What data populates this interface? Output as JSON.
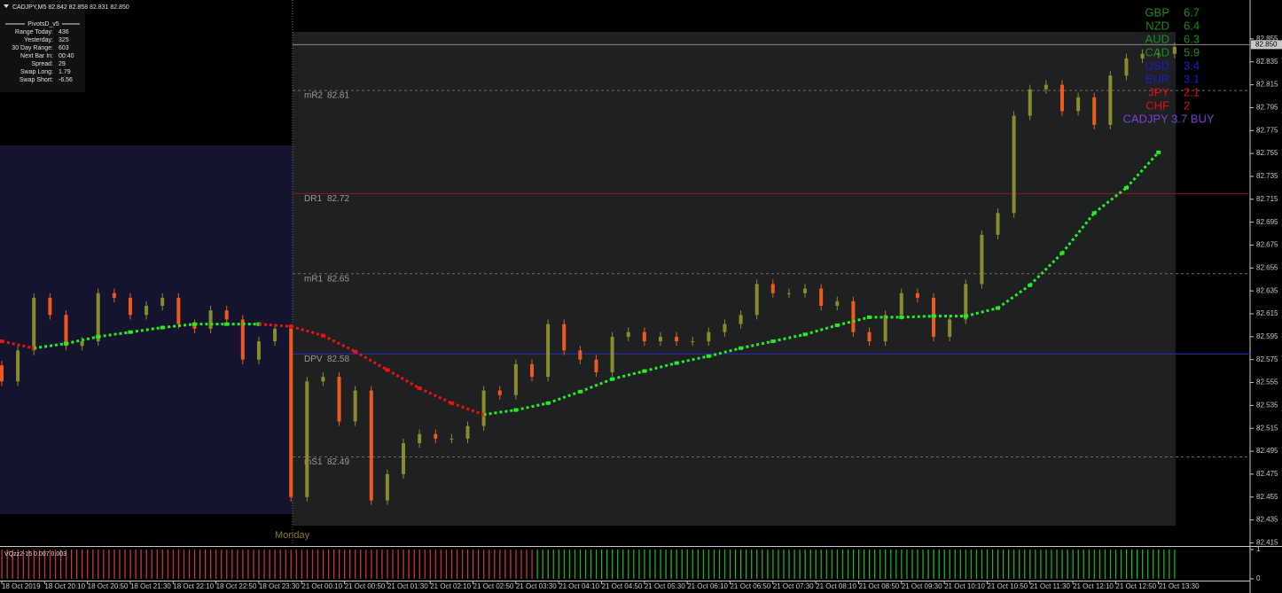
{
  "chart_data": {
    "type": "candlestick",
    "header": "CADJPY,M5  82.842 82.858 82.831 82.850",
    "up_color": "#8a8c2a",
    "down_color": "#ee5a1e",
    "xlim": [
      -0.33,
      233.1
    ],
    "ylim": [
      82.413,
      82.889
    ],
    "yticks": [
      82.415,
      82.435,
      82.455,
      82.475,
      82.495,
      82.515,
      82.535,
      82.555,
      82.575,
      82.595,
      82.615,
      82.635,
      82.655,
      82.675,
      82.695,
      82.715,
      82.735,
      82.755,
      82.775,
      82.795,
      82.815,
      82.835,
      82.855
    ],
    "xticks": [
      {
        "value": 0,
        "label": "18 Oct 2019"
      },
      {
        "value": 8,
        "label": "18 Oct 20:10"
      },
      {
        "value": 16,
        "label": "18 Oct 20:50"
      },
      {
        "value": 24,
        "label": "18 Oct 21:30"
      },
      {
        "value": 32,
        "label": "18 Oct 22:10"
      },
      {
        "value": 40,
        "label": "18 Oct 22:50"
      },
      {
        "value": 48,
        "label": "18 Oct 23:30"
      },
      {
        "value": 56,
        "label": "21 Oct 00:10"
      },
      {
        "value": 64,
        "label": "21 Oct 00:50"
      },
      {
        "value": 72,
        "label": "21 Oct 01:30"
      },
      {
        "value": 80,
        "label": "21 Oct 02:10"
      },
      {
        "value": 88,
        "label": "21 Oct 02:50"
      },
      {
        "value": 96,
        "label": "21 Oct 03:30"
      },
      {
        "value": 104,
        "label": "21 Oct 04:10"
      },
      {
        "value": 112,
        "label": "21 Oct 04:50"
      },
      {
        "value": 120,
        "label": "21 Oct 05:30"
      },
      {
        "value": 128,
        "label": "21 Oct 06:10"
      },
      {
        "value": 136,
        "label": "21 Oct 06:50"
      },
      {
        "value": 144,
        "label": "21 Oct 07:30"
      },
      {
        "value": 152,
        "label": "21 Oct 08:10"
      },
      {
        "value": 160,
        "label": "21 Oct 08:50"
      },
      {
        "value": 168,
        "label": "21 Oct 09:30"
      },
      {
        "value": 176,
        "label": "21 Oct 10:10"
      },
      {
        "value": 184,
        "label": "21 Oct 10:50"
      },
      {
        "value": 192,
        "label": "21 Oct 11:30"
      },
      {
        "value": 200,
        "label": "21 Oct 12:10"
      },
      {
        "value": 208,
        "label": "21 Oct 12:50"
      },
      {
        "value": 216,
        "label": "21 Oct 13:30"
      }
    ],
    "x": [
      0,
      3,
      6,
      9,
      12,
      15,
      18,
      21,
      24,
      27,
      30,
      33,
      36,
      39,
      42,
      45,
      48,
      51,
      54,
      57,
      60,
      63,
      66,
      69,
      72,
      75,
      78,
      81,
      84,
      87,
      90,
      93,
      96,
      99,
      102,
      105,
      108,
      111,
      114,
      117,
      120,
      123,
      126,
      129,
      132,
      135,
      138,
      141,
      144,
      147,
      150,
      153,
      156,
      159,
      162,
      165,
      168,
      171,
      174,
      177,
      180,
      183,
      186,
      189,
      192,
      195,
      198,
      201,
      204,
      207,
      210,
      213,
      216,
      219
    ],
    "open": [
      82.57,
      82.556,
      82.583,
      82.629,
      82.614,
      82.587,
      82.591,
      82.633,
      82.629,
      82.614,
      82.622,
      82.629,
      82.606,
      82.602,
      82.618,
      82.61,
      82.575,
      82.591,
      82.602,
      82.455,
      82.556,
      82.56,
      82.521,
      82.548,
      82.452,
      82.475,
      82.502,
      82.51,
      82.506,
      82.506,
      82.517,
      82.548,
      82.544,
      82.571,
      82.56,
      82.606,
      82.583,
      82.575,
      82.564,
      82.595,
      82.599,
      82.591,
      82.595,
      82.591,
      82.591,
      82.599,
      82.606,
      82.614,
      82.641,
      82.633,
      82.633,
      82.637,
      82.622,
      82.626,
      82.599,
      82.591,
      82.614,
      82.633,
      82.629,
      82.595,
      82.61,
      82.641,
      82.684,
      82.703,
      82.788,
      82.811,
      82.815,
      82.792,
      82.804,
      82.78,
      82.823,
      82.838,
      82.842,
      82.842
    ],
    "high": [
      82.574,
      82.587,
      82.633,
      82.633,
      82.618,
      82.595,
      82.637,
      82.637,
      82.633,
      82.626,
      82.633,
      82.633,
      82.61,
      82.622,
      82.622,
      82.614,
      82.595,
      82.606,
      82.606,
      82.56,
      82.564,
      82.564,
      82.552,
      82.552,
      82.479,
      82.506,
      82.514,
      82.514,
      82.51,
      82.521,
      82.552,
      82.552,
      82.575,
      82.575,
      82.61,
      82.61,
      82.587,
      82.579,
      82.599,
      82.603,
      82.603,
      82.599,
      82.599,
      82.595,
      82.603,
      82.61,
      82.618,
      82.645,
      82.645,
      82.637,
      82.641,
      82.641,
      82.63,
      82.63,
      82.603,
      82.618,
      82.637,
      82.637,
      82.633,
      82.614,
      82.645,
      82.688,
      82.707,
      82.792,
      82.815,
      82.819,
      82.819,
      82.808,
      82.808,
      82.827,
      82.842,
      82.846,
      82.846,
      82.852
    ],
    "low": [
      82.552,
      82.552,
      82.579,
      82.61,
      82.583,
      82.583,
      82.587,
      82.625,
      82.61,
      82.61,
      82.618,
      82.602,
      82.598,
      82.598,
      82.606,
      82.571,
      82.571,
      82.587,
      82.451,
      82.451,
      82.552,
      82.517,
      82.517,
      82.448,
      82.448,
      82.471,
      82.498,
      82.502,
      82.502,
      82.502,
      82.513,
      82.54,
      82.54,
      82.556,
      82.556,
      82.579,
      82.571,
      82.56,
      82.56,
      82.591,
      82.587,
      82.587,
      82.587,
      82.587,
      82.587,
      82.595,
      82.602,
      82.61,
      82.629,
      82.629,
      82.629,
      82.618,
      82.618,
      82.595,
      82.587,
      82.587,
      82.61,
      82.625,
      82.591,
      82.591,
      82.606,
      82.637,
      82.68,
      82.699,
      82.784,
      82.807,
      82.788,
      82.788,
      82.776,
      82.776,
      82.819,
      82.834,
      82.838,
      82.838
    ],
    "close": [
      82.556,
      82.583,
      82.629,
      82.614,
      82.587,
      82.591,
      82.633,
      82.629,
      82.614,
      82.622,
      82.629,
      82.606,
      82.602,
      82.618,
      82.61,
      82.575,
      82.591,
      82.602,
      82.455,
      82.556,
      82.56,
      82.521,
      82.548,
      82.452,
      82.475,
      82.502,
      82.51,
      82.506,
      82.506,
      82.517,
      82.548,
      82.544,
      82.571,
      82.56,
      82.606,
      82.583,
      82.575,
      82.564,
      82.595,
      82.599,
      82.591,
      82.595,
      82.591,
      82.591,
      82.599,
      82.606,
      82.614,
      82.641,
      82.633,
      82.633,
      82.637,
      82.622,
      82.626,
      82.599,
      82.591,
      82.614,
      82.633,
      82.629,
      82.595,
      82.61,
      82.641,
      82.684,
      82.703,
      82.788,
      82.811,
      82.815,
      82.792,
      82.804,
      82.78,
      82.823,
      82.838,
      82.842,
      82.842,
      82.848
    ],
    "current_price": {
      "value": 82.85,
      "label": "82.850"
    },
    "ma": {
      "up_color": "#22ee22",
      "down_color": "#ee1111",
      "x": [
        0,
        6,
        12,
        18,
        24,
        30,
        36,
        42,
        48,
        54,
        60,
        66,
        72,
        78,
        84,
        90,
        96,
        102,
        108,
        114,
        120,
        126,
        132,
        138,
        144,
        150,
        156,
        162,
        168,
        174,
        180,
        186,
        192,
        198,
        204,
        210,
        216
      ],
      "values": [
        82.591,
        82.585,
        82.589,
        82.595,
        82.599,
        82.603,
        82.606,
        82.606,
        82.606,
        82.604,
        82.596,
        82.582,
        82.566,
        82.55,
        82.537,
        82.527,
        82.531,
        82.537,
        82.547,
        82.558,
        82.565,
        82.572,
        82.578,
        82.585,
        82.591,
        82.597,
        82.605,
        82.612,
        82.612,
        82.613,
        82.613,
        82.62,
        82.64,
        82.668,
        82.703,
        82.725,
        82.756
      ]
    },
    "pivots": [
      {
        "name": "mR2",
        "value": 82.81,
        "color": "#6a6a6a",
        "style": "dashed"
      },
      {
        "name": "DR1",
        "value": 82.72,
        "color": "#8b1a1a",
        "style": "solid"
      },
      {
        "name": "mR1",
        "value": 82.65,
        "color": "#6a6a6a",
        "style": "dashed"
      },
      {
        "name": "DPV",
        "value": 82.58,
        "color": "#2a2ac8",
        "style": "solid"
      },
      {
        "name": "mS1",
        "value": 82.49,
        "color": "#6a6a6a",
        "style": "dashed"
      }
    ],
    "session_label": "Monday",
    "info_panel": {
      "title": "PivotsD_v5",
      "rows": [
        [
          "Range  Today:",
          436
        ],
        [
          "Yesterday:",
          325
        ],
        [
          "30 Day Range:",
          603
        ],
        [
          "Next Bar In:",
          "00:40"
        ],
        [
          "Spread:",
          29
        ],
        [
          "Swap  Long:",
          1.79
        ],
        [
          "Swap  Short:",
          -6.56
        ]
      ]
    },
    "strength": {
      "items": [
        {
          "name": "GBP",
          "value": 6.7,
          "color": "#1f8a1f"
        },
        {
          "name": "NZD",
          "value": 6.4,
          "color": "#1f8a1f"
        },
        {
          "name": "AUD",
          "value": 6.3,
          "color": "#1f8a1f"
        },
        {
          "name": "CAD",
          "value": 5.9,
          "color": "#1f8a1f"
        },
        {
          "name": "USD",
          "value": 3.4,
          "color": "#1c1cd0"
        },
        {
          "name": "EUR",
          "value": 3.1,
          "color": "#1c1cd0"
        },
        {
          "name": "JPY",
          "value": 2.1,
          "color": "#dd1111"
        },
        {
          "name": "CHF",
          "value": 2.0,
          "color": "#dd1111"
        }
      ],
      "signal": "CADJPY 3.7 BUY",
      "signal_color": "#7b3fd6"
    },
    "indicator": {
      "label": "VQzz2-15 0.007 0.003",
      "ylim": [
        0,
        1
      ],
      "yticks": [
        0,
        1
      ],
      "segments": [
        {
          "from": 0,
          "to": 99,
          "color": "#d83a3a"
        },
        {
          "from": 100,
          "to": 219,
          "color": "#21c021"
        }
      ]
    }
  }
}
